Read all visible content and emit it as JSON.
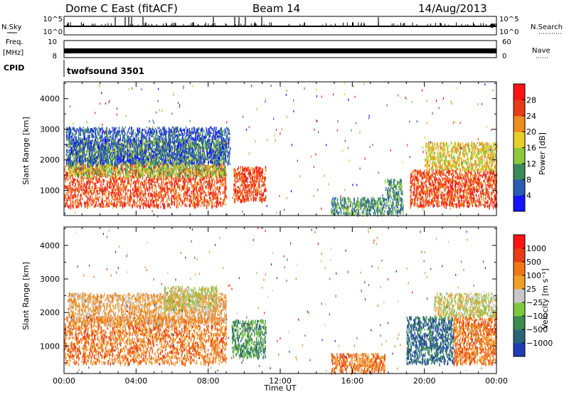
{
  "header": {
    "station": "Dome C East (fitACF)",
    "beam": "Beam 14",
    "date": "14/Aug/2013"
  },
  "panels": {
    "nsky_label": "N.Sky",
    "nsky_ticks": [
      "10^5",
      "10^0"
    ],
    "nsearch_label": "N.Search",
    "nsearch_ticks": [
      "10^5",
      "10^0"
    ],
    "freq_label": "Freq.",
    "freq_unit": "[MHz]",
    "freq_ticks": [
      "10",
      "8"
    ],
    "nave_label": "Nave",
    "nave_ticks": [
      "60",
      "0"
    ],
    "cpid_label": "CPID",
    "cpid_value": "twofsound 3501"
  },
  "chart_data": [
    {
      "type": "heatmap",
      "title": "",
      "ylabel": "Slant Range [km]",
      "ylim": [
        180,
        4550
      ],
      "yticks": [
        1000,
        2000,
        3000,
        4000
      ],
      "xlim": [
        0,
        24
      ],
      "colorbar": {
        "label": "Power [dB]",
        "ticks": [
          "4",
          "8",
          "12",
          "16",
          "20",
          "24",
          "28"
        ],
        "colors": [
          "#1414ff",
          "#2a5cb4",
          "#3a8a5a",
          "#8ec83c",
          "#e8d028",
          "#f08c1e",
          "#e83c14",
          "#ff1414"
        ]
      },
      "regions": [
        {
          "t0": 0.0,
          "t1": 9.0,
          "r0": 500,
          "r1": 1900,
          "level": 6
        },
        {
          "t0": 0.2,
          "t1": 9.0,
          "r0": 1500,
          "r1": 2700,
          "level": 3
        },
        {
          "t0": 0.1,
          "t1": 9.2,
          "r0": 1900,
          "r1": 3100,
          "level": 1
        },
        {
          "t0": 9.4,
          "t1": 11.2,
          "r0": 700,
          "r1": 1800,
          "level": 6
        },
        {
          "t0": 14.8,
          "t1": 17.8,
          "r0": 250,
          "r1": 800,
          "level": 2
        },
        {
          "t0": 17.8,
          "t1": 18.8,
          "r0": 300,
          "r1": 1400,
          "level": 2
        },
        {
          "t0": 19.2,
          "t1": 24.0,
          "r0": 500,
          "r1": 1700,
          "level": 6
        },
        {
          "t0": 20.0,
          "t1": 24.0,
          "r0": 1700,
          "r1": 2600,
          "level": 4
        }
      ]
    },
    {
      "type": "heatmap",
      "title": "",
      "ylabel": "Slant Range [km]",
      "ylim": [
        180,
        4550
      ],
      "yticks": [
        1000,
        2000,
        3000,
        4000
      ],
      "xlim": [
        0,
        24
      ],
      "xticks": [
        "00:00",
        "04:00",
        "08:00",
        "12:00",
        "16:00",
        "20:00",
        "00:00"
      ],
      "xlabel": "Time UT",
      "colorbar": {
        "label": "Velocity [m s⁻¹]",
        "ticks": [
          "1000",
          "500",
          "100",
          "25",
          "−25",
          "−100",
          "−500",
          "−1000"
        ],
        "colors": [
          "#1e3cb4",
          "#2a6478",
          "#3c8c50",
          "#7ec83c",
          "#c8c8c8",
          "#f0a028",
          "#f07814",
          "#e83c14",
          "#ff1414"
        ]
      },
      "regions": [
        {
          "t0": 0.0,
          "t1": 9.0,
          "r0": 500,
          "r1": 1900,
          "level": 6
        },
        {
          "t0": 0.2,
          "t1": 9.0,
          "r0": 1700,
          "r1": 2600,
          "level": 5
        },
        {
          "t0": 5.5,
          "t1": 8.5,
          "r0": 2100,
          "r1": 2800,
          "level": 4
        },
        {
          "t0": 9.3,
          "t1": 11.2,
          "r0": 700,
          "r1": 1800,
          "level": 2
        },
        {
          "t0": 14.8,
          "t1": 17.8,
          "r0": 250,
          "r1": 800,
          "level": 6
        },
        {
          "t0": 19.0,
          "t1": 21.6,
          "r0": 500,
          "r1": 1900,
          "level": 1
        },
        {
          "t0": 21.6,
          "t1": 24.0,
          "r0": 500,
          "r1": 1900,
          "level": 6
        },
        {
          "t0": 20.5,
          "t1": 24.0,
          "r0": 1900,
          "r1": 2600,
          "level": 4
        }
      ]
    }
  ]
}
